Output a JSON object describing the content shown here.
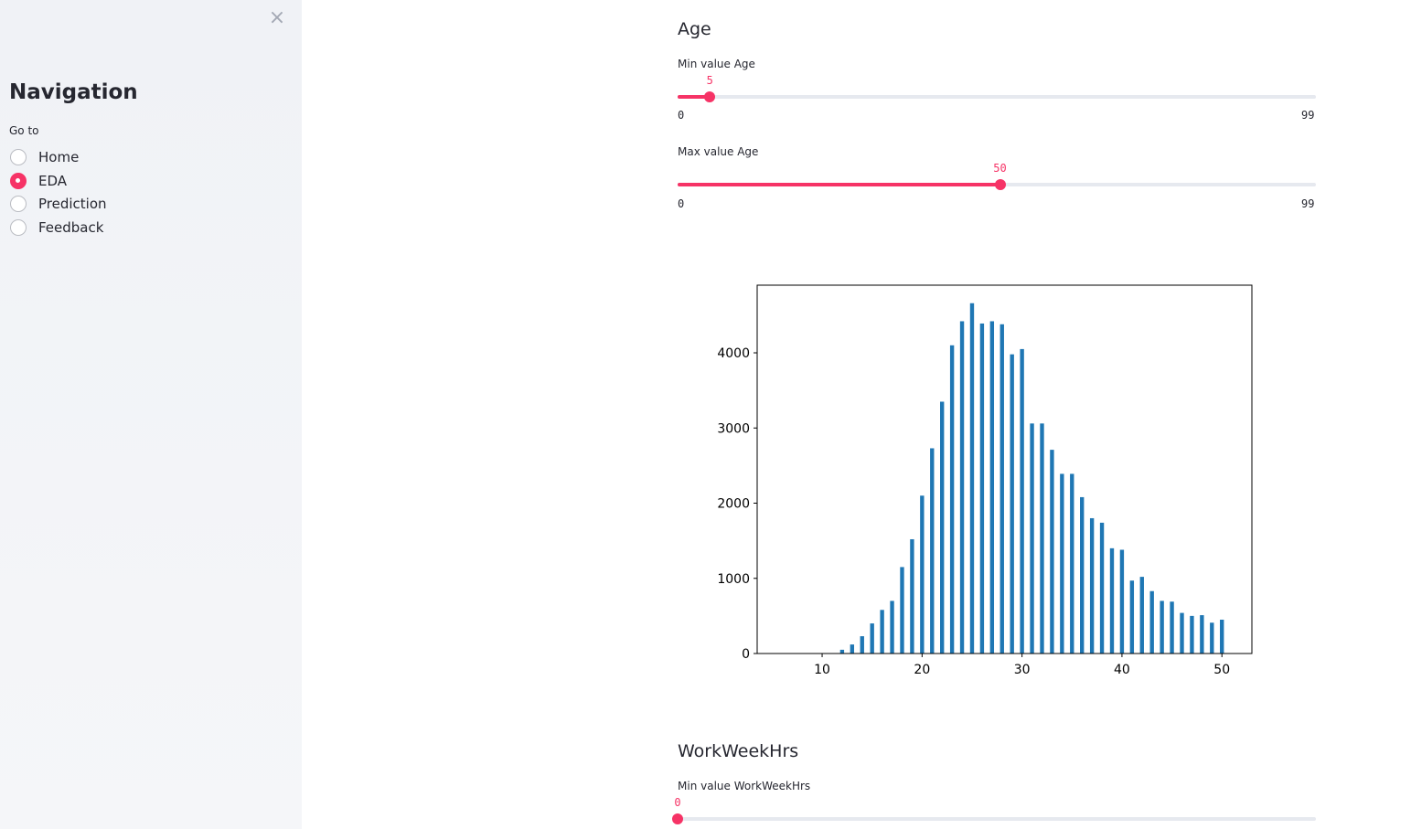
{
  "sidebar": {
    "close_icon": "×",
    "title": "Navigation",
    "radio_label": "Go to",
    "options": [
      {
        "label": "Home",
        "selected": false
      },
      {
        "label": "EDA",
        "selected": true
      },
      {
        "label": "Prediction",
        "selected": false
      },
      {
        "label": "Feedback",
        "selected": false
      }
    ]
  },
  "age": {
    "title": "Age",
    "min_slider": {
      "label": "Min value Age",
      "value": 5,
      "min": 0,
      "max": 99,
      "value_text": "5",
      "min_text": "0",
      "max_text": "99"
    },
    "max_slider": {
      "label": "Max value Age",
      "value": 50,
      "min": 0,
      "max": 99,
      "value_text": "50",
      "min_text": "0",
      "max_text": "99"
    }
  },
  "workweek": {
    "title": "WorkWeekHrs",
    "min_slider": {
      "label": "Min value WorkWeekHrs",
      "value": 0,
      "min": 0,
      "max": 99,
      "value_text": "0"
    }
  },
  "colors": {
    "accent": "#f63366",
    "bar": "#1f77b4",
    "track": "#e6e9ef"
  },
  "chart_data": {
    "type": "bar",
    "x": [
      12,
      13,
      14,
      15,
      16,
      17,
      18,
      19,
      20,
      21,
      22,
      23,
      24,
      25,
      26,
      27,
      28,
      29,
      30,
      31,
      32,
      33,
      34,
      35,
      36,
      37,
      38,
      39,
      40,
      41,
      42,
      43,
      44,
      45,
      46,
      47,
      48,
      49,
      50
    ],
    "values": [
      50,
      120,
      230,
      400,
      580,
      700,
      1150,
      1520,
      2100,
      2730,
      3350,
      4100,
      4420,
      4660,
      4390,
      4420,
      4380,
      3980,
      4050,
      3060,
      3060,
      2710,
      2390,
      2390,
      2080,
      1800,
      1740,
      1400,
      1380,
      970,
      1020,
      830,
      700,
      690,
      540,
      500,
      510,
      410,
      450
    ],
    "xlim": [
      3.5,
      53.0
    ],
    "ylim": [
      0,
      4900
    ],
    "xticks": [
      10,
      20,
      30,
      40,
      50
    ],
    "yticks": [
      0,
      1000,
      2000,
      3000,
      4000
    ],
    "title": "",
    "xlabel": "",
    "ylabel": ""
  }
}
